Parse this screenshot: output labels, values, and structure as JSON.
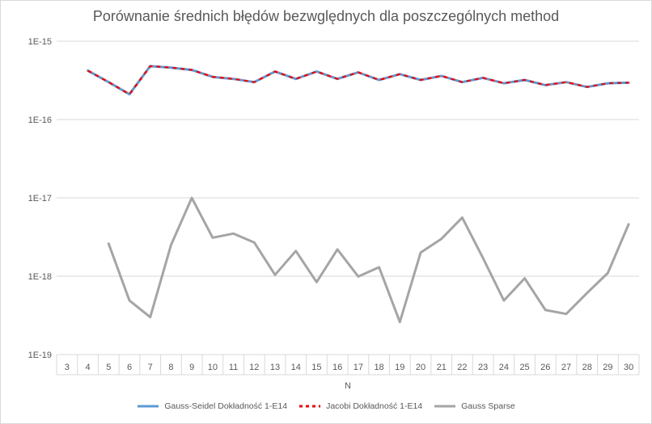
{
  "chart_data": {
    "type": "line",
    "title": "Porównanie średnich błędów bezwględnych dla poszczególnych method",
    "xlabel": "N",
    "ylabel": "",
    "y_scale": "log",
    "ylim": [
      1e-19,
      1e-15
    ],
    "y_ticks": [
      "1E-19",
      "1E-18",
      "1E-17",
      "1E-16",
      "1E-15"
    ],
    "categories": [
      "3",
      "4",
      "5",
      "6",
      "7",
      "8",
      "9",
      "10",
      "11",
      "12",
      "13",
      "14",
      "15",
      "16",
      "17",
      "18",
      "19",
      "20",
      "21",
      "22",
      "23",
      "24",
      "25",
      "26",
      "27",
      "28",
      "29",
      "30"
    ],
    "grid": true,
    "legend_position": "bottom",
    "series": [
      {
        "name": "Gauss-Seidel Dokładność 1-E14",
        "color": "#5b9bd5",
        "style": "solid",
        "values": [
          null,
          4.2e-16,
          3e-16,
          2.1e-16,
          4.8e-16,
          4.6e-16,
          4.3e-16,
          3.5e-16,
          3.3e-16,
          3e-16,
          4.1e-16,
          3.3e-16,
          4.1e-16,
          3.3e-16,
          4e-16,
          3.2e-16,
          3.8e-16,
          3.2e-16,
          3.6e-16,
          3e-16,
          3.4e-16,
          2.9e-16,
          3.2e-16,
          2.75e-16,
          3e-16,
          2.6e-16,
          2.9e-16,
          2.95e-16
        ]
      },
      {
        "name": "Jacobi Dokładność 1-E14",
        "color": "#ff0000",
        "style": "dashed",
        "values": [
          null,
          4.2e-16,
          3e-16,
          2.1e-16,
          4.8e-16,
          4.6e-16,
          4.3e-16,
          3.5e-16,
          3.3e-16,
          3e-16,
          4.1e-16,
          3.3e-16,
          4.1e-16,
          3.3e-16,
          4e-16,
          3.2e-16,
          3.8e-16,
          3.2e-16,
          3.6e-16,
          3e-16,
          3.4e-16,
          2.9e-16,
          3.2e-16,
          2.75e-16,
          3e-16,
          2.6e-16,
          2.9e-16,
          2.95e-16
        ]
      },
      {
        "name": "Gauss Sparse",
        "color": "#a5a5a5",
        "style": "solid",
        "values": [
          null,
          null,
          2.6e-18,
          4.9e-19,
          3e-19,
          2.5e-18,
          1e-17,
          3.1e-18,
          3.5e-18,
          2.7e-18,
          1.04e-18,
          2.1e-18,
          8.4e-19,
          2.2e-18,
          9.9e-19,
          1.3e-18,
          2.6e-19,
          2e-18,
          3e-18,
          5.6e-18,
          1.7e-18,
          4.9e-19,
          9.4e-19,
          3.7e-19,
          3.3e-19,
          6.1e-19,
          1.1e-18,
          4.6e-18
        ]
      }
    ]
  }
}
